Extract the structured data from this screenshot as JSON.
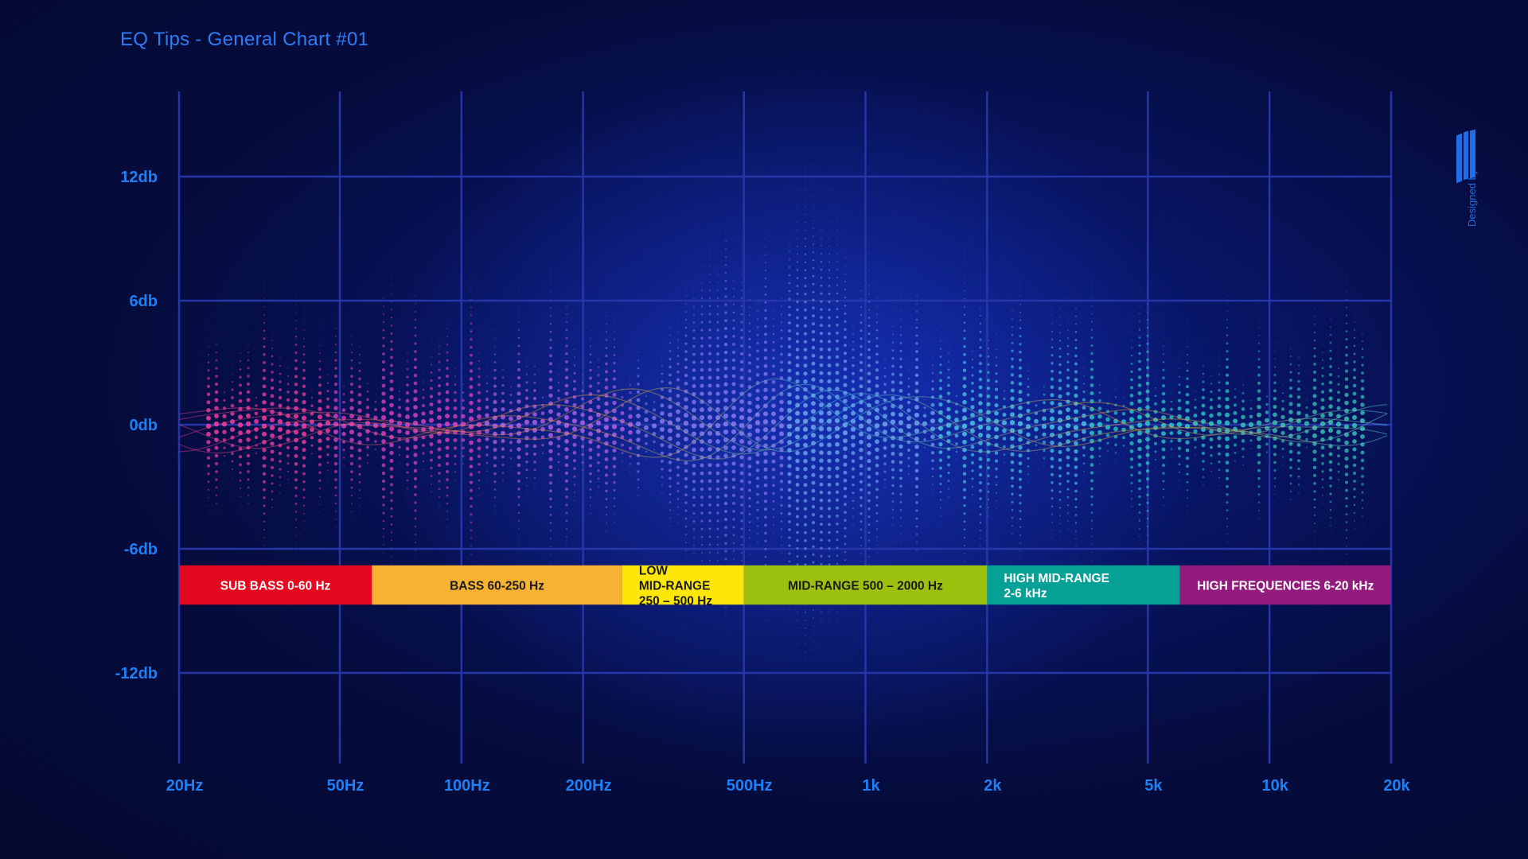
{
  "title": "EQ Tips - General Chart #01",
  "credit": {
    "text": "Designed by"
  },
  "colors": {
    "background": "#050c3e",
    "grid": "#2636a8",
    "tick_text": "#1f7ff5",
    "title_text": "#2f7cf2"
  },
  "chart_data": {
    "type": "frequency-band chart",
    "x_scale": "log",
    "x_range_hz": [
      20,
      20000
    ],
    "x_ticks": [
      {
        "value": 20,
        "label": "20Hz"
      },
      {
        "value": 50,
        "label": "50Hz"
      },
      {
        "value": 100,
        "label": "100Hz"
      },
      {
        "value": 200,
        "label": "200Hz"
      },
      {
        "value": 500,
        "label": "500Hz"
      },
      {
        "value": 1000,
        "label": "1k"
      },
      {
        "value": 2000,
        "label": "2k"
      },
      {
        "value": 5000,
        "label": "5k"
      },
      {
        "value": 10000,
        "label": "10k"
      },
      {
        "value": 20000,
        "label": "20k"
      }
    ],
    "y_range_db": [
      -15,
      15
    ],
    "y_ticks": [
      {
        "value": 12,
        "label": "12db"
      },
      {
        "value": 6,
        "label": "6db"
      },
      {
        "value": 0,
        "label": "0db"
      },
      {
        "value": -6,
        "label": "-6db"
      },
      {
        "value": -12,
        "label": "-12db"
      }
    ],
    "grid": true,
    "bands": [
      {
        "lines": [
          "SUB BASS 0-60 Hz"
        ],
        "from_hz": 20,
        "to_hz": 60,
        "color": "#e3091e",
        "text_color": "light"
      },
      {
        "lines": [
          "BASS 60-250 Hz"
        ],
        "from_hz": 60,
        "to_hz": 250,
        "color": "#f7b233",
        "text_color": "dark"
      },
      {
        "lines": [
          "LOW",
          "MID-RANGE",
          "250 – 500 Hz"
        ],
        "from_hz": 250,
        "to_hz": 500,
        "color": "#fde70a",
        "text_color": "dark",
        "align": "left"
      },
      {
        "lines": [
          "MID-RANGE 500 – 2000 Hz"
        ],
        "from_hz": 500,
        "to_hz": 2000,
        "color": "#9cc20f",
        "text_color": "dark"
      },
      {
        "lines": [
          "HIGH MID-RANGE",
          "2-6 kHz"
        ],
        "from_hz": 2000,
        "to_hz": 6000,
        "color": "#06a196",
        "text_color": "light",
        "align": "left"
      },
      {
        "lines": [
          "HIGH FREQUENCIES 6-20 kHz"
        ],
        "from_hz": 6000,
        "to_hz": 20000,
        "color": "#941b7e",
        "text_color": "light"
      }
    ],
    "bands_db_range": [
      -8.7,
      -6.8
    ]
  }
}
